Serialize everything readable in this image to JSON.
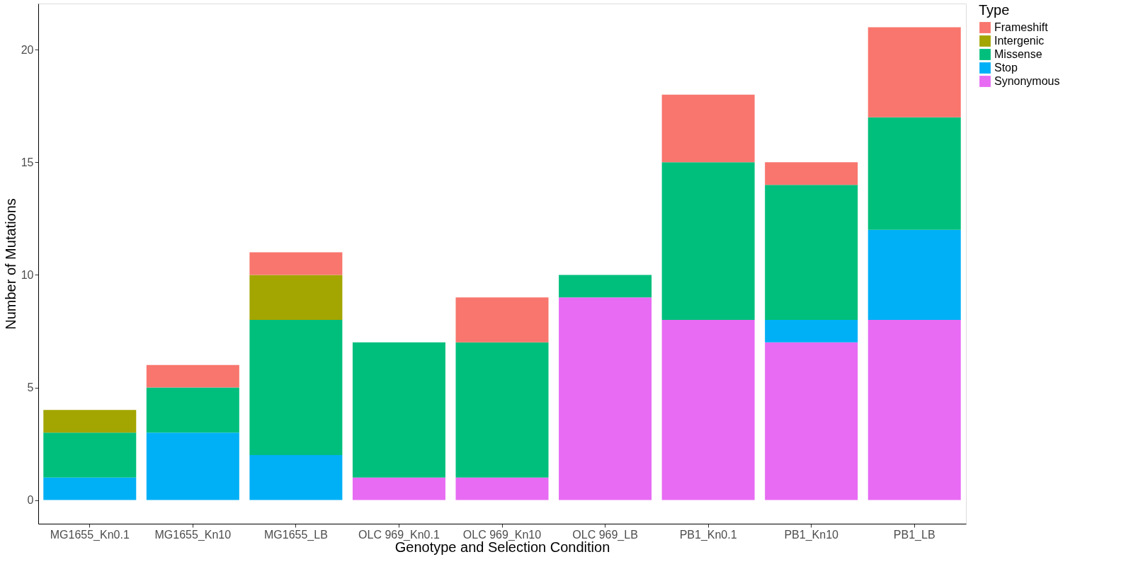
{
  "chart_data": {
    "type": "bar",
    "stacked": true,
    "xlabel": "Genotype and Selection Condition",
    "ylabel": "Number of Mutations",
    "legend_title": "Type",
    "categories": [
      "MG1655_Kn0.1",
      "MG1655_Kn10",
      "MG1655_LB",
      "OLC 969_Kn0.1",
      "OLC 969_Kn10",
      "OLC 969_LB",
      "PB1_Kn0.1",
      "PB1_Kn10",
      "PB1_LB"
    ],
    "series": [
      {
        "name": "Synonymous",
        "color": "#e76bf3",
        "values": [
          null,
          null,
          null,
          1,
          1,
          9,
          8,
          7,
          8
        ]
      },
      {
        "name": "Stop",
        "color": "#00b0f6",
        "values": [
          1,
          3,
          2,
          null,
          null,
          null,
          null,
          1,
          4
        ]
      },
      {
        "name": "Missense",
        "color": "#00bf7d",
        "values": [
          2,
          2,
          6,
          6,
          6,
          1,
          7,
          6,
          5
        ]
      },
      {
        "name": "Intergenic",
        "color": "#a3a500",
        "values": [
          1,
          null,
          2,
          null,
          null,
          null,
          null,
          null,
          null
        ]
      },
      {
        "name": "Frameshift",
        "color": "#f8766d",
        "values": [
          null,
          1,
          1,
          null,
          2,
          null,
          3,
          1,
          4
        ]
      }
    ],
    "ylim": [
      -1.05,
      22.05
    ],
    "yticks": [
      0,
      5,
      10,
      15,
      20
    ],
    "grid": false,
    "legend": "right"
  }
}
